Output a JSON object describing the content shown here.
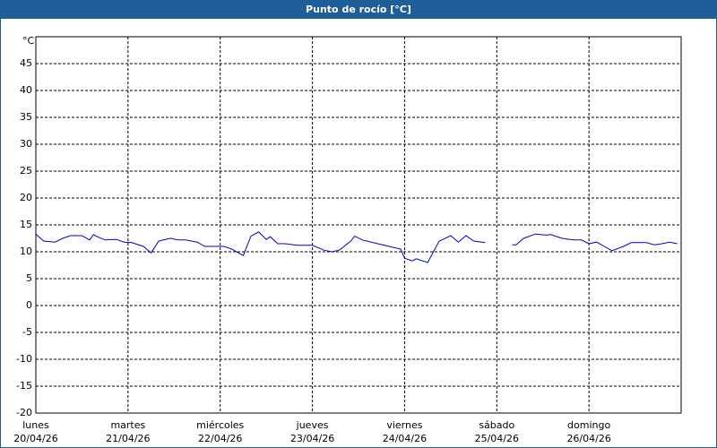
{
  "chart_data": {
    "type": "line",
    "title": "Punto de rocío [°C]",
    "unit": "°C",
    "x": [
      0,
      2,
      5,
      7,
      9,
      12,
      14,
      15,
      16,
      18,
      21,
      23,
      25,
      28,
      30,
      32,
      35,
      37,
      39,
      42,
      44,
      49,
      51,
      54,
      56,
      58,
      60,
      61,
      63,
      65,
      68,
      72,
      75,
      77,
      79,
      82,
      83,
      85,
      89,
      92,
      95,
      96,
      98,
      99,
      102,
      105,
      106,
      108,
      110,
      112,
      114,
      117,
      120,
      124,
      125,
      127,
      130,
      133,
      134,
      137,
      140,
      142,
      144,
      146,
      148,
      150,
      153,
      155,
      159,
      161,
      163,
      165,
      167
    ],
    "values": [
      13.3,
      12,
      11.8,
      12.5,
      13,
      13,
      12.2,
      13.2,
      12.8,
      12.2,
      12.3,
      11.8,
      11.7,
      11,
      9.8,
      12,
      12.5,
      12.2,
      12.2,
      11.8,
      11,
      11,
      10.5,
      9.3,
      12.9,
      13.7,
      12.3,
      12.8,
      11.5,
      11.5,
      11.2,
      11.2,
      10.3,
      10,
      10.3,
      12,
      12.9,
      12.2,
      11.5,
      11,
      10.5,
      8.8,
      8.3,
      8.7,
      8,
      12,
      12.3,
      13,
      11.8,
      13,
      12,
      11.7,
      null,
      11.3,
      11.3,
      12.5,
      13.3,
      13.1,
      13.2,
      12.5,
      12.2,
      12.2,
      11.5,
      11.8,
      11,
      10.2,
      11,
      11.7,
      11.7,
      11.3,
      11.5,
      11.8,
      11.5
    ],
    "color": "#0000cc",
    "xlim": [
      0,
      168
    ],
    "xticks": [
      {
        "value": 0,
        "label": [
          "lunes",
          "20/04/26"
        ]
      },
      {
        "value": 24,
        "label": [
          "martes",
          "21/04/26"
        ]
      },
      {
        "value": 48,
        "label": [
          "miércoles",
          "22/04/26"
        ]
      },
      {
        "value": 72,
        "label": [
          "jueves",
          "23/04/26"
        ]
      },
      {
        "value": 96,
        "label": [
          "viernes",
          "24/04/26"
        ]
      },
      {
        "value": 120,
        "label": [
          "sábado",
          "25/04/26"
        ]
      },
      {
        "value": 144,
        "label": [
          "domingo",
          "26/04/26"
        ]
      }
    ],
    "ylim": [
      -20,
      50
    ],
    "yticks": [
      -20,
      -15,
      -10,
      -5,
      0,
      5,
      10,
      15,
      20,
      25,
      30,
      35,
      40,
      45
    ],
    "grid": true
  }
}
